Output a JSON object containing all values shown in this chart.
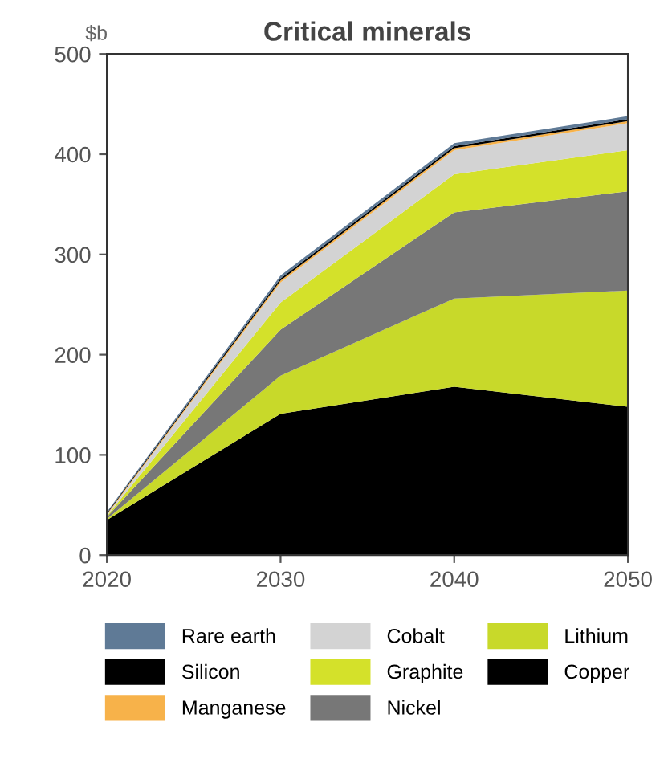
{
  "chart_data": {
    "type": "area",
    "stacked": true,
    "title": "Critical minerals",
    "ylabel": "$b",
    "x": [
      2020,
      2030,
      2040,
      2050
    ],
    "xlim": [
      2020,
      2050
    ],
    "xticks": [
      2020,
      2030,
      2040,
      2050
    ],
    "ylim": [
      0,
      500
    ],
    "yticks": [
      0,
      100,
      200,
      300,
      400,
      500
    ],
    "grid": false,
    "legend": "bottom",
    "series": [
      {
        "name": "Copper",
        "color": "#000000",
        "values": [
          35,
          141,
          168,
          148
        ]
      },
      {
        "name": "Lithium",
        "color": "#c8d92a",
        "values": [
          1,
          38,
          88,
          116
        ]
      },
      {
        "name": "Nickel",
        "color": "#777777",
        "values": [
          2,
          46,
          86,
          99
        ]
      },
      {
        "name": "Graphite",
        "color": "#d4e12a",
        "values": [
          1,
          27,
          38,
          41
        ]
      },
      {
        "name": "Cobalt",
        "color": "#d3d3d3",
        "values": [
          1,
          20,
          24,
          27
        ]
      },
      {
        "name": "Manganese",
        "color": "#f7b24a",
        "values": [
          1,
          2,
          2,
          2
        ]
      },
      {
        "name": "Silicon",
        "color": "#000000",
        "values": [
          1,
          2,
          2,
          2
        ]
      },
      {
        "name": "Rare earth",
        "color": "#5f7a96",
        "values": [
          1,
          3,
          3,
          3
        ]
      }
    ]
  }
}
